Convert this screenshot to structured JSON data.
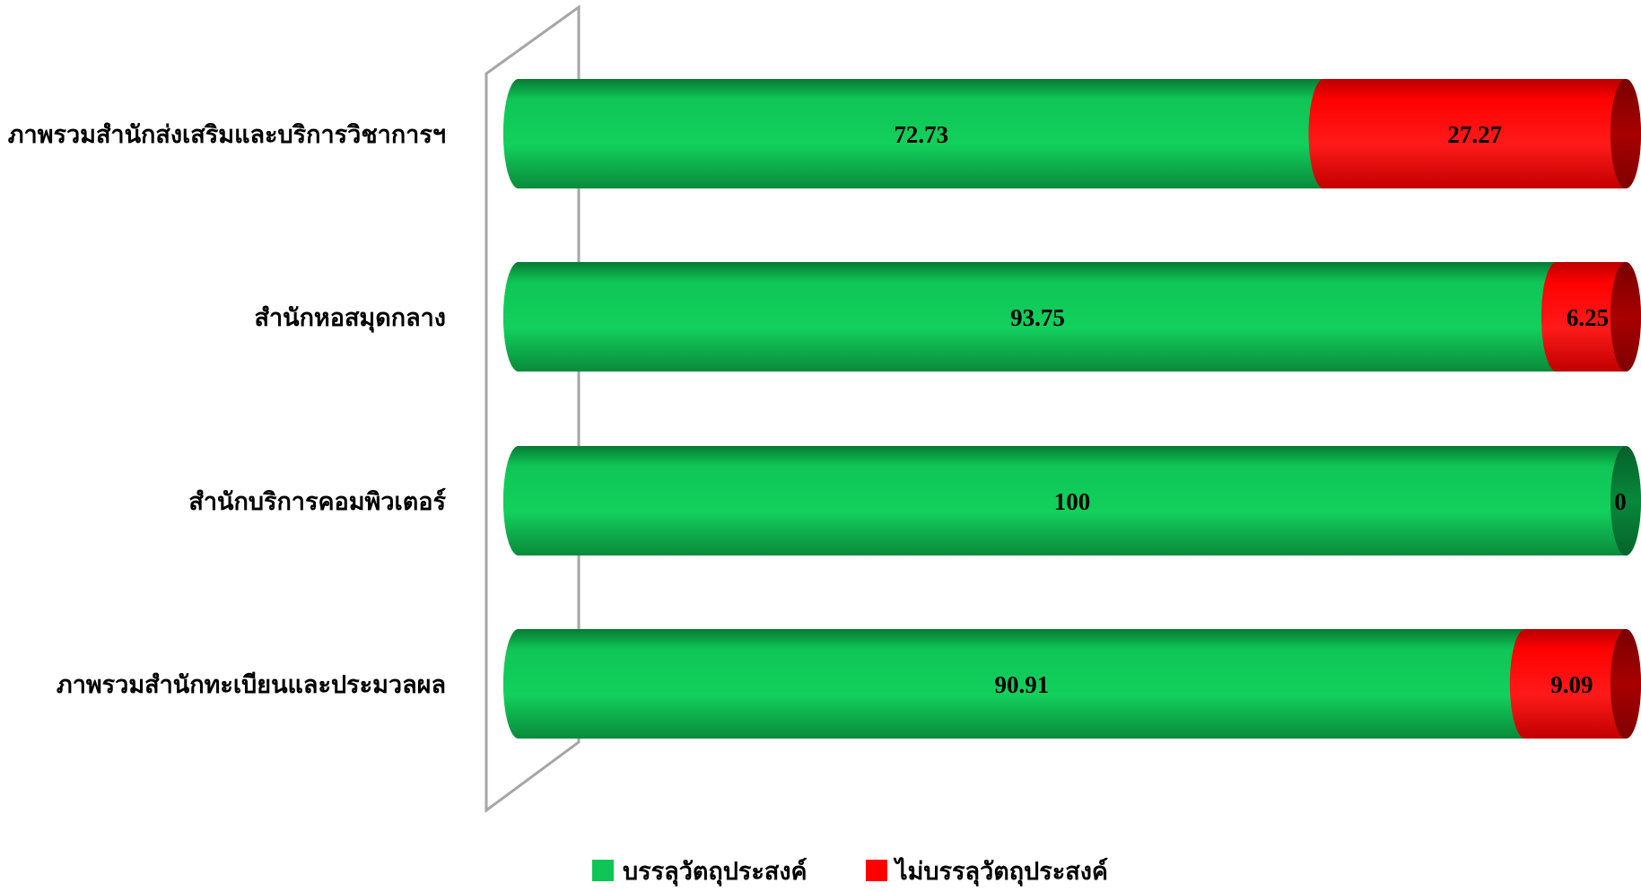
{
  "chart_data": {
    "type": "bar",
    "orientation": "horizontal",
    "stacked": true,
    "percent_stacked": true,
    "style": "3d-cylinder",
    "categories": [
      "ภาพรวมสำนักส่งเสริมและบริการวิชาการฯ",
      "สำนักหอสมุดกลาง",
      "สำนักบริการคอมพิวเตอร์",
      "ภาพรวมสำนักทะเบียนและประมวลผล"
    ],
    "series": [
      {
        "name": "บรรลุวัตถุประสงค์",
        "color": "#0fc556",
        "values": [
          72.73,
          93.75,
          100,
          90.91
        ]
      },
      {
        "name": "ไม่บรรลุวัตถุประสงค์",
        "color": "#ff0000",
        "values": [
          27.27,
          6.25,
          0,
          9.09
        ]
      }
    ],
    "data_labels": [
      [
        "72.73",
        "93.75",
        "100",
        "90.91"
      ],
      [
        "27.27",
        "6.25",
        "0",
        "9.09"
      ]
    ],
    "xlim": [
      0,
      100
    ],
    "grid": false,
    "legend": "bottom"
  }
}
